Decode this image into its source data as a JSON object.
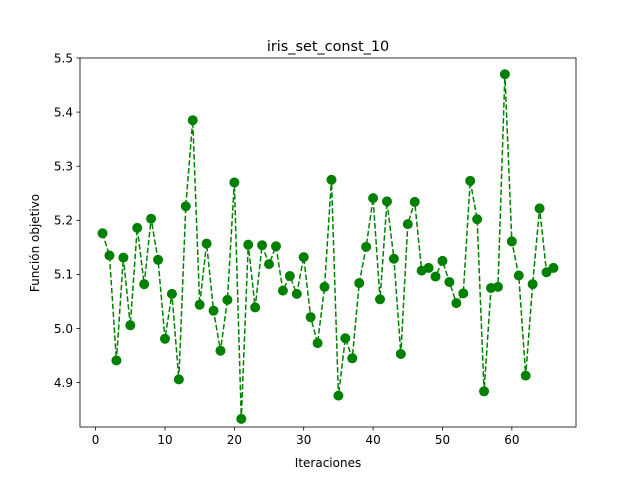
{
  "chart_data": {
    "type": "line",
    "title": "iris_set_const_10",
    "xlabel": "Iteraciones",
    "ylabel": "Función objetivo",
    "xlim": [
      -2.25,
      69.25
    ],
    "ylim": [
      4.818,
      5.5
    ],
    "xticks": [
      0,
      10,
      20,
      30,
      40,
      50,
      60
    ],
    "xtick_labels": [
      "0",
      "10",
      "20",
      "30",
      "40",
      "50",
      "60"
    ],
    "yticks": [
      4.9,
      5.0,
      5.1,
      5.2,
      5.3,
      5.4,
      5.5
    ],
    "ytick_labels": [
      "4.9",
      "5.0",
      "5.1",
      "5.2",
      "5.3",
      "5.4",
      "5.5"
    ],
    "grid": false,
    "legend": "none",
    "series": [
      {
        "color": "#008000",
        "linestyle": "dashed",
        "marker": "circle",
        "x": [
          1,
          2,
          3,
          4,
          5,
          6,
          7,
          8,
          9,
          10,
          11,
          12,
          13,
          14,
          15,
          16,
          17,
          18,
          19,
          20,
          21,
          22,
          23,
          24,
          25,
          26,
          27,
          28,
          29,
          30,
          31,
          32,
          33,
          34,
          35,
          36,
          37,
          38,
          39,
          40,
          41,
          42,
          43,
          44,
          45,
          46,
          47,
          48,
          49,
          50,
          51,
          52,
          53,
          54,
          55,
          56,
          57,
          58,
          59,
          60,
          61,
          62,
          63,
          64,
          65,
          66
        ],
        "y": [
          5.176,
          5.135,
          4.941,
          5.131,
          5.006,
          5.186,
          5.082,
          5.203,
          5.127,
          4.981,
          5.064,
          4.906,
          5.226,
          5.385,
          5.044,
          5.157,
          5.033,
          4.959,
          5.053,
          5.27,
          4.833,
          5.155,
          5.039,
          5.154,
          5.119,
          5.152,
          5.07,
          5.097,
          5.064,
          5.132,
          5.021,
          4.973,
          5.077,
          5.275,
          4.876,
          4.982,
          4.945,
          5.084,
          5.151,
          5.241,
          5.054,
          5.235,
          5.129,
          4.953,
          5.193,
          5.234,
          5.107,
          5.112,
          5.096,
          5.125,
          5.086,
          5.047,
          5.065,
          5.273,
          5.202,
          4.884,
          5.075,
          5.077,
          5.47,
          5.161,
          5.098,
          4.913,
          5.082,
          5.222,
          5.104,
          5.112
        ]
      }
    ]
  }
}
